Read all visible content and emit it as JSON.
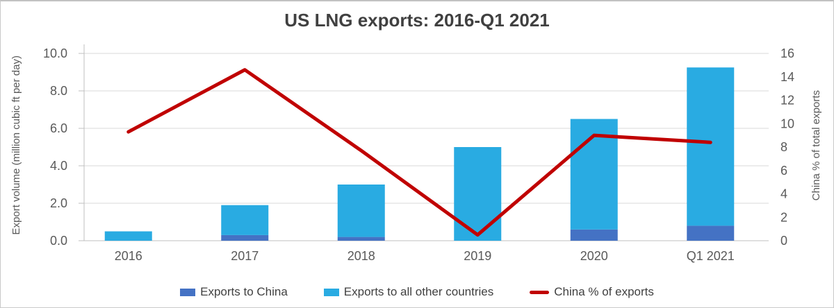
{
  "chart": {
    "title": "US LNG exports: 2016-Q1 2021",
    "left_axis": {
      "title": "Export volume (million cubic ft per day)",
      "tick_labels": [
        "0.0",
        "2.0",
        "4.0",
        "6.0",
        "8.0",
        "10.0"
      ],
      "min": 0,
      "max": 10
    },
    "right_axis": {
      "title": "China % of total exports",
      "tick_labels": [
        "0",
        "2",
        "4",
        "6",
        "8",
        "10",
        "12",
        "14",
        "16"
      ],
      "min": 0,
      "max": 16
    }
  },
  "chart_data": {
    "type": "combo: stacked bars (left axis) + line (right axis)",
    "title": "US LNG exports: 2016-Q1 2021",
    "categories": [
      "2016",
      "2017",
      "2018",
      "2019",
      "2020",
      "Q1 2021"
    ],
    "series": [
      {
        "name": "Exports to China",
        "type": "bar",
        "stack": "volume",
        "axis": "left",
        "color": "#4472C4",
        "values": [
          0.0,
          0.3,
          0.2,
          0.0,
          0.6,
          0.8
        ]
      },
      {
        "name": "Exports to all other countries",
        "type": "bar",
        "stack": "volume",
        "axis": "left",
        "color": "#29ABE2",
        "values": [
          0.5,
          1.6,
          2.8,
          5.0,
          5.9,
          8.45
        ]
      },
      {
        "name": "China % of exports",
        "type": "line",
        "axis": "right",
        "color": "#C00000",
        "values": [
          9.3,
          14.6,
          7.7,
          0.5,
          9.0,
          8.4
        ]
      }
    ],
    "stacked_bar_totals": [
      0.5,
      1.9,
      3.0,
      5.0,
      6.5,
      9.25
    ],
    "ylabel_left": "Export volume (million cubic ft per day)",
    "ylabel_right": "China % of total exports",
    "ylim_left": [
      0,
      10
    ],
    "ylim_right": [
      0,
      16
    ],
    "grid": true,
    "legend_position": "bottom",
    "colors": {
      "grid": "#D9D9D9",
      "axis": "#BFBFBF",
      "title_text": "#404040",
      "tick_text": "#595959",
      "legend_text": "#404040",
      "background": "#FFFFFF"
    }
  }
}
